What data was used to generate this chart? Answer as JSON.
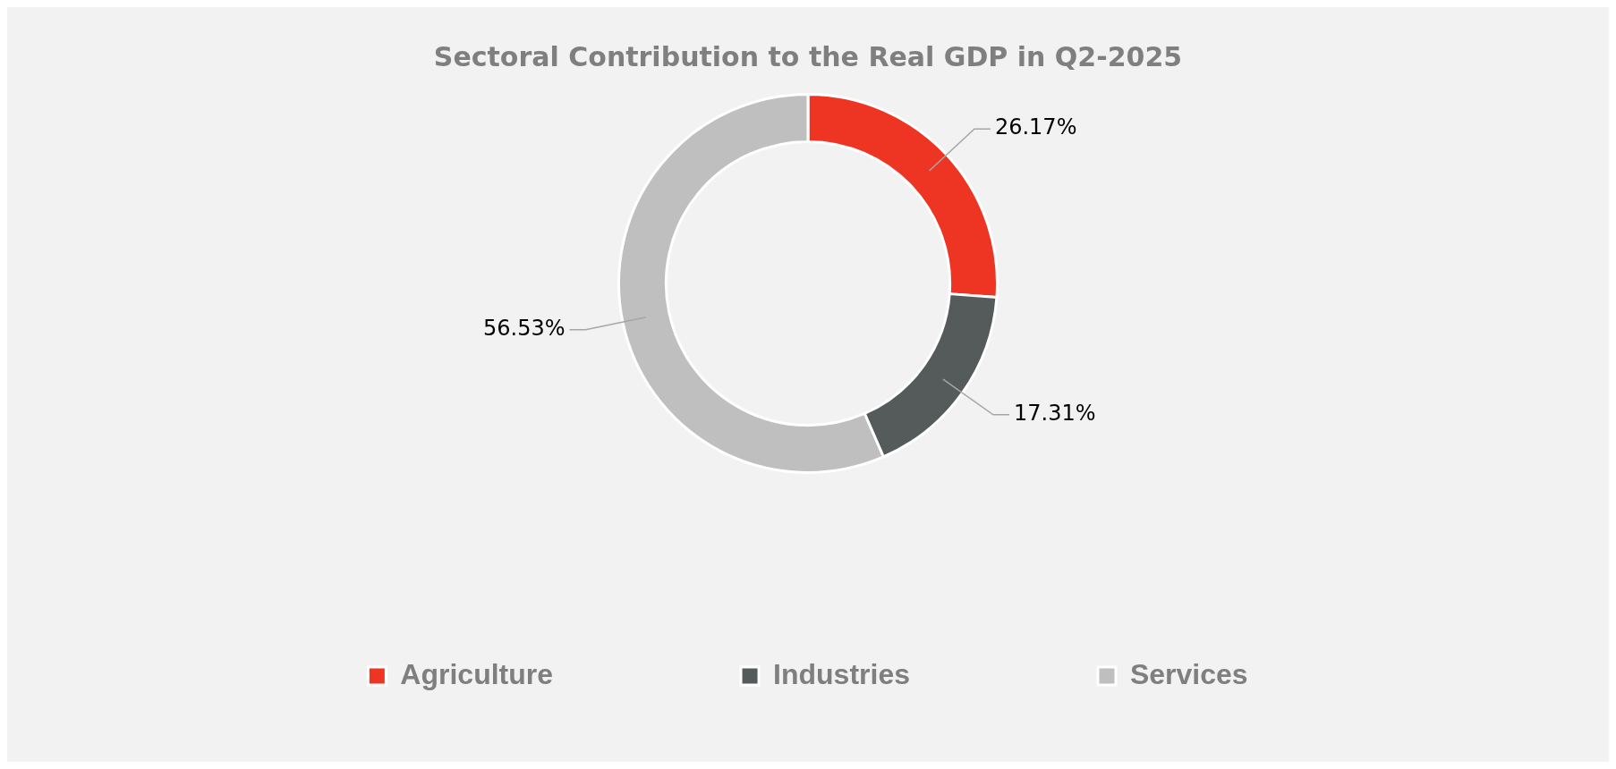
{
  "chart_data": {
    "type": "donut",
    "title": "Sectoral Contribution to the Real GDP in Q2-2025",
    "categories": [
      "Agriculture",
      "Industries",
      "Services"
    ],
    "values": [
      26.17,
      17.31,
      56.53
    ],
    "value_labels": [
      "26.17%",
      "17.31%",
      "56.53%"
    ],
    "colors": [
      "#ee3524",
      "#555a5a",
      "#bfbfbf"
    ],
    "legend": "bottom"
  }
}
